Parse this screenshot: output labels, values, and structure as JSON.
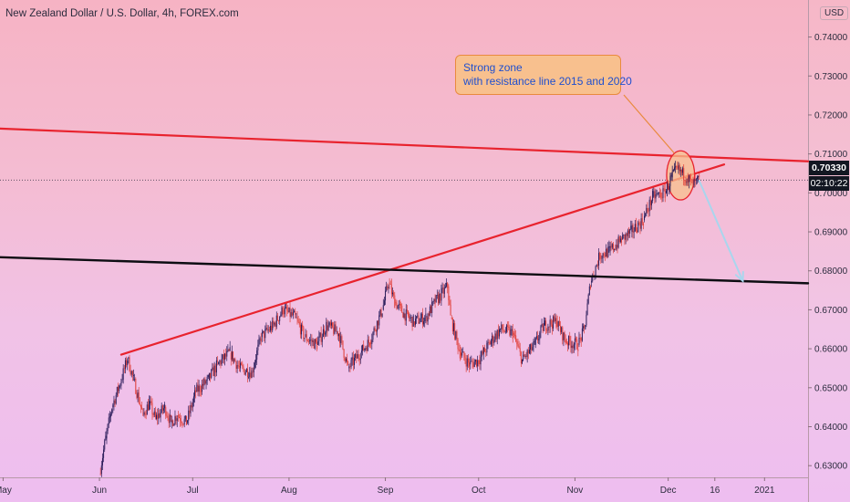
{
  "header": {
    "title": "New Zealand Dollar / U.S. Dollar, 4h, FOREX.com"
  },
  "currency": "USD",
  "last_price": "0.70330",
  "countdown": "02:10:22",
  "annotation": {
    "line1": "Strong zone",
    "line2": "with resistance line 2015 and 2020"
  },
  "colors": {
    "resistance": "#e8232e",
    "support": "#0d0d12",
    "arrow": "#a9d6ee",
    "candle_up": "#2a1c5a",
    "candle_down": "#e0403a",
    "callout_fill": "#f8c08e",
    "callout_border": "#e98a3e",
    "callout_text": "#1f4fcf"
  },
  "chart_data": {
    "type": "line",
    "title": "New Zealand Dollar / U.S. Dollar, 4h, FOREX.com",
    "xlabel": "",
    "ylabel": "",
    "y_unit": "USD",
    "ylim": [
      0.627,
      0.7495
    ],
    "xlim": [
      "2020-04-30",
      "2021-01-15"
    ],
    "y_ticks": [
      "0.63000",
      "0.64000",
      "0.65000",
      "0.66000",
      "0.67000",
      "0.68000",
      "0.69000",
      "0.70000",
      "0.71000",
      "0.72000",
      "0.73000",
      "0.74000"
    ],
    "x_ticks": [
      {
        "label": "May",
        "date": "2020-05-01"
      },
      {
        "label": "Jun",
        "date": "2020-06-01"
      },
      {
        "label": "Jul",
        "date": "2020-07-01"
      },
      {
        "label": "Aug",
        "date": "2020-08-01"
      },
      {
        "label": "Sep",
        "date": "2020-09-01"
      },
      {
        "label": "Oct",
        "date": "2020-10-01"
      },
      {
        "label": "Nov",
        "date": "2020-11-01"
      },
      {
        "label": "Dec",
        "date": "2020-12-01"
      },
      {
        "label": "16",
        "date": "2020-12-16"
      },
      {
        "label": "2021",
        "date": "2021-01-01"
      }
    ],
    "series": [
      {
        "name": "NZDUSD",
        "points": [
          [
            "2020-06-01",
            0.628
          ],
          [
            "2020-06-03",
            0.637
          ],
          [
            "2020-06-05",
            0.645
          ],
          [
            "2020-06-08",
            0.652
          ],
          [
            "2020-06-10",
            0.6575
          ],
          [
            "2020-06-12",
            0.652
          ],
          [
            "2020-06-15",
            0.643
          ],
          [
            "2020-06-17",
            0.646
          ],
          [
            "2020-06-19",
            0.642
          ],
          [
            "2020-06-22",
            0.645
          ],
          [
            "2020-06-24",
            0.641
          ],
          [
            "2020-06-26",
            0.643
          ],
          [
            "2020-06-29",
            0.641
          ],
          [
            "2020-07-02",
            0.649
          ],
          [
            "2020-07-06",
            0.652
          ],
          [
            "2020-07-09",
            0.656
          ],
          [
            "2020-07-13",
            0.659
          ],
          [
            "2020-07-16",
            0.655
          ],
          [
            "2020-07-20",
            0.654
          ],
          [
            "2020-07-23",
            0.663
          ],
          [
            "2020-07-27",
            0.666
          ],
          [
            "2020-07-30",
            0.67
          ],
          [
            "2020-08-03",
            0.668
          ],
          [
            "2020-08-06",
            0.663
          ],
          [
            "2020-08-10",
            0.661
          ],
          [
            "2020-08-13",
            0.666
          ],
          [
            "2020-08-17",
            0.664
          ],
          [
            "2020-08-20",
            0.655
          ],
          [
            "2020-08-24",
            0.659
          ],
          [
            "2020-08-27",
            0.662
          ],
          [
            "2020-08-31",
            0.67
          ],
          [
            "2020-09-02",
            0.677
          ],
          [
            "2020-09-04",
            0.672
          ],
          [
            "2020-09-07",
            0.669
          ],
          [
            "2020-09-10",
            0.667
          ],
          [
            "2020-09-14",
            0.668
          ],
          [
            "2020-09-17",
            0.672
          ],
          [
            "2020-09-21",
            0.676
          ],
          [
            "2020-09-22",
            0.668
          ],
          [
            "2020-09-25",
            0.659
          ],
          [
            "2020-09-28",
            0.656
          ],
          [
            "2020-10-01",
            0.657
          ],
          [
            "2020-10-05",
            0.662
          ],
          [
            "2020-10-08",
            0.665
          ],
          [
            "2020-10-12",
            0.664
          ],
          [
            "2020-10-15",
            0.657
          ],
          [
            "2020-10-19",
            0.661
          ],
          [
            "2020-10-22",
            0.666
          ],
          [
            "2020-10-26",
            0.667
          ],
          [
            "2020-10-29",
            0.662
          ],
          [
            "2020-11-02",
            0.661
          ],
          [
            "2020-11-04",
            0.665
          ],
          [
            "2020-11-06",
            0.677
          ],
          [
            "2020-11-09",
            0.684
          ],
          [
            "2020-11-12",
            0.685
          ],
          [
            "2020-11-16",
            0.688
          ],
          [
            "2020-11-19",
            0.69
          ],
          [
            "2020-11-23",
            0.693
          ],
          [
            "2020-11-26",
            0.699
          ],
          [
            "2020-11-30",
            0.7
          ],
          [
            "2020-12-02",
            0.704
          ],
          [
            "2020-12-04",
            0.706
          ],
          [
            "2020-12-07",
            0.704
          ],
          [
            "2020-12-09",
            0.702
          ],
          [
            "2020-12-11",
            0.7033
          ]
        ]
      }
    ],
    "drawings": [
      {
        "name": "resistance line",
        "color": "#e8232e",
        "from": [
          "2020-04-30",
          0.7165
        ],
        "to": [
          "2021-01-15",
          0.7081
        ]
      },
      {
        "name": "rising trend line",
        "color": "#e8232e",
        "from": [
          "2020-06-08",
          0.6585
        ],
        "to": [
          "2020-12-19",
          0.7073
        ]
      },
      {
        "name": "support line",
        "color": "#0d0d12",
        "from": [
          "2020-04-30",
          0.6835
        ],
        "to": [
          "2021-01-15",
          0.6768
        ]
      },
      {
        "name": "projection arrow",
        "color": "#a9d6ee",
        "from": [
          "2020-12-11",
          0.7031
        ],
        "to": [
          "2020-12-25",
          0.6774
        ]
      }
    ],
    "highlight_zone": {
      "center": [
        "2020-12-05",
        0.7045
      ],
      "radius_days": 4.5,
      "radius_price": 0.0063
    },
    "grid": false,
    "legend": "none"
  }
}
